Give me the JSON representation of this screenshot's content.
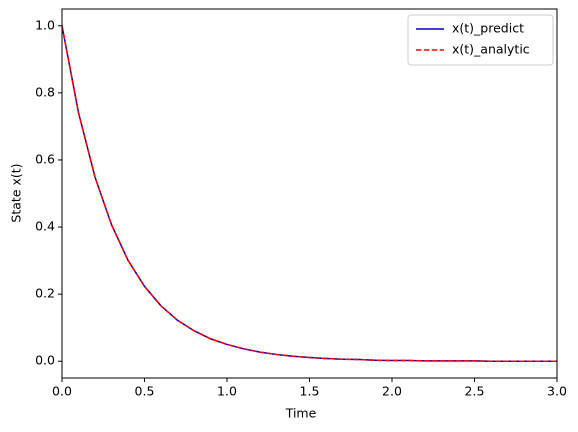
{
  "chart_data": {
    "type": "line",
    "xlabel": "Time",
    "ylabel": "State x(t)",
    "x": [
      0,
      0.1,
      0.2,
      0.3,
      0.4,
      0.5,
      0.6,
      0.7,
      0.8,
      0.9,
      1.0,
      1.1,
      1.2,
      1.3,
      1.4,
      1.5,
      1.6,
      1.7,
      1.8,
      1.9,
      2.0,
      2.1,
      2.2,
      2.3,
      2.4,
      2.5,
      2.6,
      2.7,
      2.8,
      2.9,
      3.0
    ],
    "series": [
      {
        "name": "x(t)_predict",
        "color": "#0000cc",
        "linestyle": "solid",
        "values": [
          1,
          0.741,
          0.549,
          0.407,
          0.301,
          0.223,
          0.165,
          0.122,
          0.091,
          0.067,
          0.05,
          0.037,
          0.027,
          0.02,
          0.015,
          0.011,
          0.008,
          0.006,
          0.005,
          0.003,
          0.002,
          0.002,
          0.001,
          0.001,
          0.001,
          0.001,
          0,
          0,
          0,
          0,
          0
        ]
      },
      {
        "name": "x(t)_analytic",
        "color": "#ff0000",
        "linestyle": "dashed",
        "values": [
          1,
          0.741,
          0.549,
          0.407,
          0.301,
          0.223,
          0.165,
          0.122,
          0.091,
          0.067,
          0.05,
          0.037,
          0.027,
          0.02,
          0.015,
          0.011,
          0.008,
          0.006,
          0.005,
          0.003,
          0.002,
          0.002,
          0.001,
          0.001,
          0.001,
          0.001,
          0,
          0,
          0,
          0,
          0
        ]
      }
    ],
    "xlim": [
      0,
      3
    ],
    "xticks": [
      {
        "value": 0,
        "label": "0.0"
      },
      {
        "value": 0.5,
        "label": "0.5"
      },
      {
        "value": 1,
        "label": "1.0"
      },
      {
        "value": 1.5,
        "label": "1.5"
      },
      {
        "value": 2,
        "label": "2.0"
      },
      {
        "value": 2.5,
        "label": "2.5"
      },
      {
        "value": 3,
        "label": "3.0"
      }
    ],
    "ylim": [
      -0.05,
      1.05
    ],
    "yticks": [
      {
        "value": 0,
        "label": "0.0"
      },
      {
        "value": 0.2,
        "label": "0.2"
      },
      {
        "value": 0.4,
        "label": "0.4"
      },
      {
        "value": 0.6,
        "label": "0.6"
      },
      {
        "value": 0.8,
        "label": "0.8"
      },
      {
        "value": 1,
        "label": "1.0"
      }
    ],
    "grid": false,
    "legend": "upper right"
  }
}
